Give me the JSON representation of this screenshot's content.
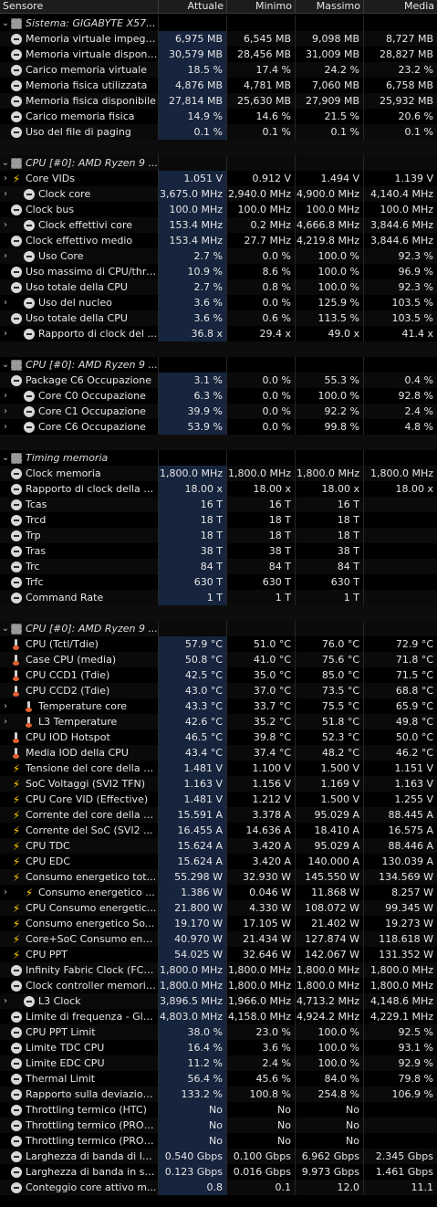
{
  "header": {
    "col0": "Sensore",
    "col1": "Attuale",
    "col2": "Minimo",
    "col3": "Massimo",
    "col4": "Media"
  },
  "rows": [
    {
      "type": "group",
      "label": "Sistema: GIGABYTE X57...",
      "exp": "⌄",
      "icon": "chip-icon"
    },
    {
      "label": "Memoria virtuale impegn...",
      "icon": "clock-icon",
      "cur": "6,975 MB",
      "min": "6,545 MB",
      "max": "9,098 MB",
      "avg": "8,727 MB"
    },
    {
      "label": "Memoria virtuale disponibile",
      "icon": "clock-icon",
      "cur": "30,579 MB",
      "min": "28,456 MB",
      "max": "31,009 MB",
      "avg": "28,827 MB"
    },
    {
      "label": "Carico memoria virtuale",
      "icon": "clock-icon",
      "cur": "18.5 %",
      "min": "17.4 %",
      "max": "24.2 %",
      "avg": "23.2 %"
    },
    {
      "label": "Memoria fisica utilizzata",
      "icon": "clock-icon",
      "cur": "4,876 MB",
      "min": "4,781 MB",
      "max": "7,060 MB",
      "avg": "6,758 MB"
    },
    {
      "label": "Memoria fisica disponibile",
      "icon": "clock-icon",
      "cur": "27,814 MB",
      "min": "25,630 MB",
      "max": "27,909 MB",
      "avg": "25,932 MB"
    },
    {
      "label": "Carico memoria fisica",
      "icon": "clock-icon",
      "cur": "14.9 %",
      "min": "14.6 %",
      "max": "21.5 %",
      "avg": "20.6 %"
    },
    {
      "label": "Uso del file di paging",
      "icon": "clock-icon",
      "cur": "0.1 %",
      "min": "0.1 %",
      "max": "0.1 %",
      "avg": "0.1 %"
    },
    {
      "type": "blank"
    },
    {
      "type": "group",
      "label": "CPU [#0]: AMD Ryzen 9 ...",
      "exp": "⌄",
      "icon": "chip-icon"
    },
    {
      "label": "Core VIDs",
      "exp": "›",
      "icon": "bolt-icon",
      "cur": "1.051 V",
      "min": "0.912 V",
      "max": "1.494 V",
      "avg": "1.139 V"
    },
    {
      "label": "Clock core",
      "exp": "›",
      "ind": true,
      "icon": "clock-icon",
      "cur": "3,675.0 MHz",
      "min": "2,940.0 MHz",
      "max": "4,900.0 MHz",
      "avg": "4,140.4 MHz"
    },
    {
      "label": "Clock bus",
      "icon": "clock-icon",
      "cur": "100.0 MHz",
      "min": "100.0 MHz",
      "max": "100.0 MHz",
      "avg": "100.0 MHz"
    },
    {
      "label": "Clock effettivi core",
      "exp": "›",
      "ind": true,
      "icon": "clock-icon",
      "cur": "153.4 MHz",
      "min": "0.2 MHz",
      "max": "4,666.8 MHz",
      "avg": "3,844.6 MHz"
    },
    {
      "label": "Clock effettivo medio",
      "icon": "clock-icon",
      "cur": "153.4 MHz",
      "min": "27.7 MHz",
      "max": "4,219.8 MHz",
      "avg": "3,844.6 MHz"
    },
    {
      "label": "Uso Core",
      "exp": "›",
      "ind": true,
      "icon": "clock-icon",
      "cur": "2.7 %",
      "min": "0.0 %",
      "max": "100.0 %",
      "avg": "92.3 %"
    },
    {
      "label": "Uso massimo di CPU/thread",
      "icon": "clock-icon",
      "cur": "10.9 %",
      "min": "8.6 %",
      "max": "100.0 %",
      "avg": "96.9 %"
    },
    {
      "label": "Uso totale della CPU",
      "icon": "clock-icon",
      "cur": "2.7 %",
      "min": "0.8 %",
      "max": "100.0 %",
      "avg": "92.3 %"
    },
    {
      "label": "Uso del nucleo",
      "exp": "›",
      "ind": true,
      "icon": "clock-icon",
      "cur": "3.6 %",
      "min": "0.0 %",
      "max": "125.9 %",
      "avg": "103.5 %"
    },
    {
      "label": "Uso totale della CPU",
      "icon": "clock-icon",
      "cur": "3.6 %",
      "min": "0.6 %",
      "max": "113.5 %",
      "avg": "103.5 %"
    },
    {
      "label": "Rapporto di clock del ...",
      "exp": "›",
      "ind": true,
      "icon": "clock-icon",
      "cur": "36.8 x",
      "min": "29.4 x",
      "max": "49.0 x",
      "avg": "41.4 x"
    },
    {
      "type": "blank"
    },
    {
      "type": "group",
      "label": "CPU [#0]: AMD Ryzen 9 ...",
      "exp": "⌄",
      "icon": "chip-icon"
    },
    {
      "label": "Package C6 Occupazione",
      "icon": "clock-icon",
      "cur": "3.1 %",
      "min": "0.0 %",
      "max": "55.3 %",
      "avg": "0.4 %"
    },
    {
      "label": "Core C0 Occupazione",
      "exp": "›",
      "ind": true,
      "icon": "clock-icon",
      "cur": "6.3 %",
      "min": "0.0 %",
      "max": "100.0 %",
      "avg": "92.8 %"
    },
    {
      "label": "Core C1 Occupazione",
      "exp": "›",
      "ind": true,
      "icon": "clock-icon",
      "cur": "39.9 %",
      "min": "0.0 %",
      "max": "92.2 %",
      "avg": "2.4 %"
    },
    {
      "label": "Core C6 Occupazione",
      "exp": "›",
      "ind": true,
      "icon": "clock-icon",
      "cur": "53.9 %",
      "min": "0.0 %",
      "max": "99.8 %",
      "avg": "4.8 %"
    },
    {
      "type": "blank"
    },
    {
      "type": "group",
      "label": "Timing memoria",
      "exp": "⌄",
      "icon": "chip-icon"
    },
    {
      "label": "Clock memoria",
      "icon": "clock-icon",
      "cur": "1,800.0 MHz",
      "min": "1,800.0 MHz",
      "max": "1,800.0 MHz",
      "avg": "1,800.0 MHz"
    },
    {
      "label": "Rapporto di clock della m...",
      "icon": "clock-icon",
      "cur": "18.00 x",
      "min": "18.00 x",
      "max": "18.00 x",
      "avg": "18.00 x"
    },
    {
      "label": "Tcas",
      "icon": "clock-icon",
      "cur": "16 T",
      "min": "16 T",
      "max": "16 T",
      "avg": ""
    },
    {
      "label": "Trcd",
      "icon": "clock-icon",
      "cur": "18 T",
      "min": "18 T",
      "max": "18 T",
      "avg": ""
    },
    {
      "label": "Trp",
      "icon": "clock-icon",
      "cur": "18 T",
      "min": "18 T",
      "max": "18 T",
      "avg": ""
    },
    {
      "label": "Tras",
      "icon": "clock-icon",
      "cur": "38 T",
      "min": "38 T",
      "max": "38 T",
      "avg": ""
    },
    {
      "label": "Trc",
      "icon": "clock-icon",
      "cur": "84 T",
      "min": "84 T",
      "max": "84 T",
      "avg": ""
    },
    {
      "label": "Trfc",
      "icon": "clock-icon",
      "cur": "630 T",
      "min": "630 T",
      "max": "630 T",
      "avg": ""
    },
    {
      "label": "Command Rate",
      "icon": "clock-icon",
      "cur": "1 T",
      "min": "1 T",
      "max": "1 T",
      "avg": ""
    },
    {
      "type": "blank"
    },
    {
      "type": "group",
      "label": "CPU [#0]: AMD Ryzen 9 ...",
      "exp": "⌄",
      "icon": "chip-icon"
    },
    {
      "label": "CPU (Tctl/Tdie)",
      "icon": "thermometer-icon",
      "cur": "57.9 °C",
      "min": "51.0 °C",
      "max": "76.0 °C",
      "avg": "72.9 °C"
    },
    {
      "label": "Case CPU (media)",
      "icon": "thermometer-icon",
      "cur": "50.8 °C",
      "min": "41.0 °C",
      "max": "75.6 °C",
      "avg": "71.8 °C"
    },
    {
      "label": "CPU CCD1 (Tdie)",
      "icon": "thermometer-icon",
      "cur": "42.5 °C",
      "min": "35.0 °C",
      "max": "85.0 °C",
      "avg": "71.5 °C"
    },
    {
      "label": "CPU CCD2 (Tdie)",
      "icon": "thermometer-icon",
      "cur": "43.0 °C",
      "min": "37.0 °C",
      "max": "73.5 °C",
      "avg": "68.8 °C"
    },
    {
      "label": "Temperature core",
      "exp": "›",
      "ind": true,
      "icon": "thermometer-icon",
      "cur": "43.3 °C",
      "min": "33.7 °C",
      "max": "75.5 °C",
      "avg": "65.9 °C"
    },
    {
      "label": "L3 Temperature",
      "exp": "›",
      "ind": true,
      "icon": "thermometer-icon",
      "cur": "42.6 °C",
      "min": "35.2 °C",
      "max": "51.8 °C",
      "avg": "49.8 °C"
    },
    {
      "label": "CPU IOD Hotspot",
      "icon": "thermometer-icon",
      "cur": "46.5 °C",
      "min": "39.8 °C",
      "max": "52.3 °C",
      "avg": "50.0 °C"
    },
    {
      "label": "Media IOD della CPU",
      "icon": "thermometer-icon",
      "cur": "43.4 °C",
      "min": "37.4 °C",
      "max": "48.2 °C",
      "avg": "46.2 °C"
    },
    {
      "label": "Tensione del core della C...",
      "icon": "bolt-icon",
      "cur": "1.481 V",
      "min": "1.100 V",
      "max": "1.500 V",
      "avg": "1.151 V"
    },
    {
      "label": "SoC Voltaggi (SVI2 TFN)",
      "icon": "bolt-icon",
      "cur": "1.163 V",
      "min": "1.156 V",
      "max": "1.169 V",
      "avg": "1.163 V"
    },
    {
      "label": "CPU Core VID (Effective)",
      "icon": "bolt-icon",
      "cur": "1.481 V",
      "min": "1.212 V",
      "max": "1.500 V",
      "avg": "1.255 V"
    },
    {
      "label": "Corrente del core della C...",
      "icon": "bolt-icon",
      "cur": "15.591 A",
      "min": "3.378 A",
      "max": "95.029 A",
      "avg": "88.445 A"
    },
    {
      "label": "Corrente del SoC (SVI2 ...",
      "icon": "bolt-icon",
      "cur": "16.455 A",
      "min": "14.636 A",
      "max": "18.410 A",
      "avg": "16.575 A"
    },
    {
      "label": "CPU TDC",
      "icon": "bolt-icon",
      "cur": "15.624 A",
      "min": "3.420 A",
      "max": "95.029 A",
      "avg": "88.446 A"
    },
    {
      "label": "CPU EDC",
      "icon": "bolt-icon",
      "cur": "15.624 A",
      "min": "3.420 A",
      "max": "140.000 A",
      "avg": "130.039 A"
    },
    {
      "label": "Consumo energetico tot...",
      "icon": "bolt-icon",
      "cur": "55.298 W",
      "min": "32.930 W",
      "max": "145.550 W",
      "avg": "134.569 W"
    },
    {
      "label": "Consumo energetico ...",
      "exp": "›",
      "ind": true,
      "icon": "bolt-icon",
      "cur": "1.386 W",
      "min": "0.046 W",
      "max": "11.868 W",
      "avg": "8.257 W"
    },
    {
      "label": "CPU Consumo energetic...",
      "icon": "bolt-icon",
      "cur": "21.800 W",
      "min": "4.330 W",
      "max": "108.072 W",
      "avg": "99.345 W"
    },
    {
      "label": "Consumo energetico So...",
      "icon": "bolt-icon",
      "cur": "19.170 W",
      "min": "17.105 W",
      "max": "21.402 W",
      "avg": "19.273 W"
    },
    {
      "label": "Core+SoC Consumo ene...",
      "icon": "bolt-icon",
      "cur": "40.970 W",
      "min": "21.434 W",
      "max": "127.874 W",
      "avg": "118.618 W"
    },
    {
      "label": "CPU PPT",
      "icon": "bolt-icon",
      "cur": "54.025 W",
      "min": "32.646 W",
      "max": "142.067 W",
      "avg": "131.352 W"
    },
    {
      "label": "Infinity Fabric Clock (FCLK)",
      "icon": "clock-icon",
      "cur": "1,800.0 MHz",
      "min": "1,800.0 MHz",
      "max": "1,800.0 MHz",
      "avg": "1,800.0 MHz"
    },
    {
      "label": "Clock controller memoria ...",
      "icon": "clock-icon",
      "cur": "1,800.0 MHz",
      "min": "1,800.0 MHz",
      "max": "1,800.0 MHz",
      "avg": "1,800.0 MHz"
    },
    {
      "label": "L3 Clock",
      "exp": "›",
      "ind": true,
      "icon": "clock-icon",
      "cur": "3,896.5 MHz",
      "min": "1,966.0 MHz",
      "max": "4,713.2 MHz",
      "avg": "4,148.6 MHz"
    },
    {
      "label": "Limite di frequenza - Glo...",
      "icon": "clock-icon",
      "cur": "4,803.0 MHz",
      "min": "4,158.0 MHz",
      "max": "4,924.2 MHz",
      "avg": "4,229.1 MHz"
    },
    {
      "label": "CPU PPT Limit",
      "icon": "clock-icon",
      "cur": "38.0 %",
      "min": "23.0 %",
      "max": "100.0 %",
      "avg": "92.5 %"
    },
    {
      "label": "Limite TDC CPU",
      "icon": "clock-icon",
      "cur": "16.4 %",
      "min": "3.6 %",
      "max": "100.0 %",
      "avg": "93.1 %"
    },
    {
      "label": "Limite EDC CPU",
      "icon": "clock-icon",
      "cur": "11.2 %",
      "min": "2.4 %",
      "max": "100.0 %",
      "avg": "92.9 %"
    },
    {
      "label": "Thermal Limit",
      "icon": "clock-icon",
      "cur": "56.4 %",
      "min": "45.6 %",
      "max": "84.0 %",
      "avg": "79.8 %"
    },
    {
      "label": "Rapporto sulla deviazion...",
      "icon": "clock-icon",
      "cur": "133.2 %",
      "min": "100.8 %",
      "max": "254.8 %",
      "avg": "106.9 %"
    },
    {
      "label": "Throttling termico (HTC)",
      "icon": "clock-icon",
      "cur": "No",
      "min": "No",
      "max": "No",
      "avg": ""
    },
    {
      "label": "Throttling termico (PROC...",
      "icon": "clock-icon",
      "cur": "No",
      "min": "No",
      "max": "No",
      "avg": ""
    },
    {
      "label": "Throttling termico (PROC...",
      "icon": "clock-icon",
      "cur": "No",
      "min": "No",
      "max": "No",
      "avg": ""
    },
    {
      "label": "Larghezza di banda di let...",
      "icon": "clock-icon",
      "cur": "0.540 Gbps",
      "min": "0.100 Gbps",
      "max": "6.962 Gbps",
      "avg": "2.345 Gbps"
    },
    {
      "label": "Larghezza di banda in sc...",
      "icon": "clock-icon",
      "cur": "0.123 Gbps",
      "min": "0.016 Gbps",
      "max": "9.973 Gbps",
      "avg": "1.461 Gbps"
    },
    {
      "label": "Conteggio core attivo m...",
      "icon": "clock-icon",
      "cur": "0.8",
      "min": "0.1",
      "max": "12.0",
      "avg": "11.1"
    }
  ]
}
